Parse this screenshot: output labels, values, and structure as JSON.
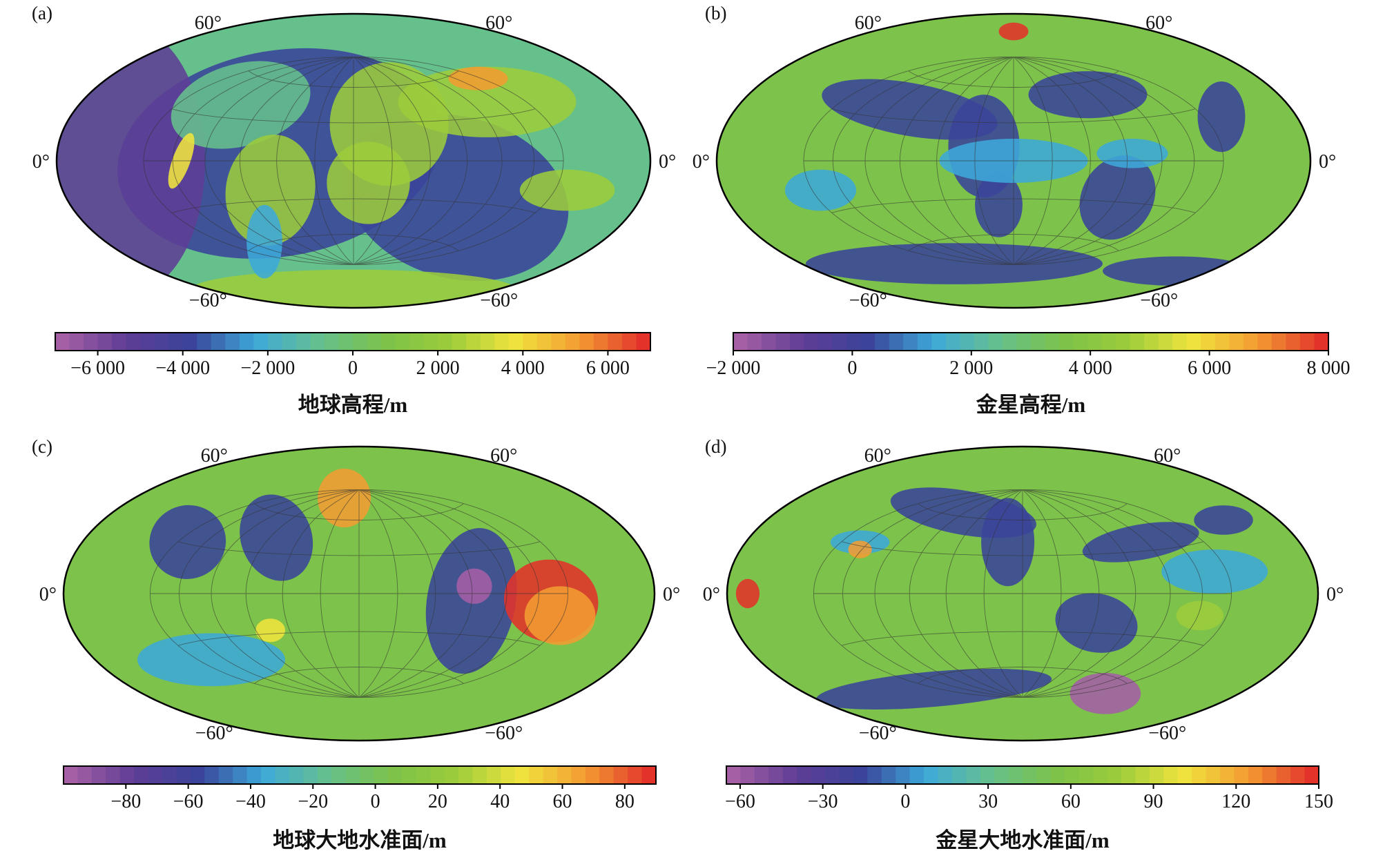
{
  "figure": {
    "panels": [
      {
        "id": "a",
        "label": "(a)",
        "lat_labels": {
          "north_left": "60°",
          "north_right": "60°",
          "equator_left": "0°",
          "equator_right": "0°",
          "south_left": "−60°",
          "south_right": "−60°"
        },
        "colorbar": {
          "title": "地球高程/m",
          "ticks": [
            "−6 000",
            "−4 000",
            "−2 000",
            "0",
            "2 000",
            "4 000",
            "6 000"
          ],
          "tick_values": [
            -6000,
            -4000,
            -2000,
            0,
            2000,
            4000,
            6000
          ],
          "range": [
            -7000,
            7000
          ]
        },
        "map_content": "Earth topography: ocean basins dark blue/purple, continents green, Himalaya/Tibet orange-red, Antarctica green"
      },
      {
        "id": "b",
        "label": "(b)",
        "lat_labels": {
          "north_left": "60°",
          "north_right": "60°",
          "equator_left": "0°",
          "equator_right": "0°",
          "south_left": "−60°",
          "south_right": "−60°"
        },
        "colorbar": {
          "title": "金星高程/m",
          "ticks": [
            "−2 000",
            "0",
            "2 000",
            "4 000",
            "6 000",
            "8 000"
          ],
          "tick_values": [
            -2000,
            0,
            2000,
            4000,
            6000,
            8000
          ],
          "range": [
            -2000,
            8000
          ]
        },
        "map_content": "Venus topography: mostly green plains with blue lowland patches, red highland near north pole"
      },
      {
        "id": "c",
        "label": "(c)",
        "lat_labels": {
          "north_left": "60°",
          "north_right": "60°",
          "equator_left": "0°",
          "equator_right": "0°",
          "south_left": "−60°",
          "south_right": "−60°"
        },
        "colorbar": {
          "title": "地球大地水准面/m",
          "ticks": [
            "−80",
            "−60",
            "−40",
            "−20",
            "0",
            "20",
            "40",
            "60",
            "80"
          ],
          "tick_values": [
            -80,
            -60,
            -40,
            -20,
            0,
            20,
            40,
            60,
            80
          ],
          "range": [
            -100,
            90
          ]
        },
        "map_content": "Earth geoid: smooth field, purple low in Indian Ocean, red high over western Pacific, yellow high near north Atlantic"
      },
      {
        "id": "d",
        "label": "(d)",
        "lat_labels": {
          "north_left": "60°",
          "north_right": "60°",
          "equator_left": "0°",
          "equator_right": "0°",
          "south_left": "−60°",
          "south_right": "−60°"
        },
        "colorbar": {
          "title": "金星大地水准面/m",
          "ticks": [
            "−60",
            "−30",
            "0",
            "30",
            "60",
            "90",
            "120",
            "150"
          ],
          "tick_values": [
            -60,
            -30,
            0,
            30,
            60,
            90,
            120,
            150
          ],
          "range": [
            -65,
            150
          ]
        },
        "map_content": "Venus geoid: green field, blue/purple lows in northern and southern bands, red high at western equator edge"
      }
    ],
    "colormap": [
      "#a45fa5",
      "#5e3d95",
      "#3a449a",
      "#3ea9d9",
      "#66c08c",
      "#7dc24a",
      "#9ccc3b",
      "#f0e43e",
      "#f39c32",
      "#e2322a"
    ]
  }
}
